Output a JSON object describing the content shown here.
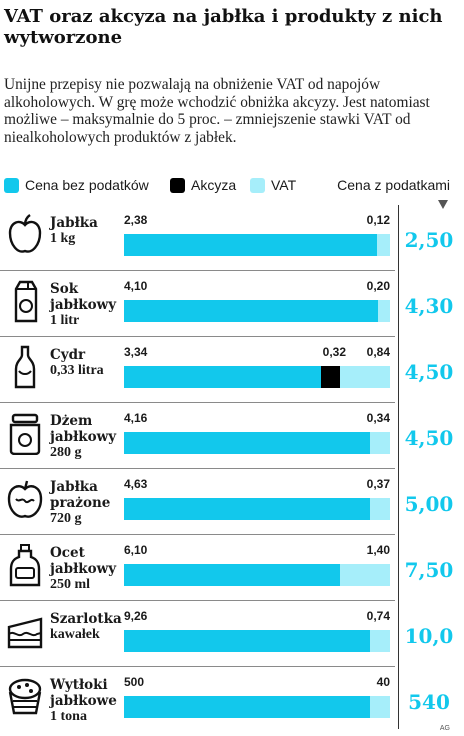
{
  "title": "VAT oraz akcyza na jabłka i produkty z nich wytworzone",
  "intro": "Unijne przepisy nie pozwalają na obniżenie VAT od napojów alkoholowych. W grę może wchodzić obniżka akcyzy. Jest natomiast możliwe – maksymalnie do 5 proc. – zmniejszenie stawki VAT od niealkoholowych produktów z jabłek.",
  "legend": {
    "items": [
      {
        "label": "Cena bez podatków",
        "color": "#12c8ec"
      },
      {
        "label": "Akcyza",
        "color": "#000000"
      },
      {
        "label": "VAT",
        "color": "#a6eefa"
      }
    ],
    "header": "Cena z podatkami"
  },
  "colors": {
    "base": "#12c8ec",
    "excise": "#000000",
    "vat": "#a6eefa",
    "total": "#12c8ec"
  },
  "credit": "AG",
  "chart_data": {
    "type": "bar",
    "orientation": "horizontal",
    "stacked": true,
    "categories": [
      "Jabłka 1 kg",
      "Sok jabłkowy 1 litr",
      "Cydr 0,33 litra",
      "Dżem jabłkowy 280 g",
      "Jabłka prażone 720 g",
      "Ocet jabłkowy 250 ml",
      "Szarlotka kawałek",
      "Wytłoki jabłkowe 1 tona"
    ],
    "series": [
      {
        "name": "Cena bez podatków",
        "values": [
          2.38,
          4.1,
          3.34,
          4.16,
          4.63,
          6.1,
          9.26,
          500
        ]
      },
      {
        "name": "Akcyza",
        "values": [
          0,
          0,
          0.32,
          0,
          0,
          0,
          0,
          0
        ]
      },
      {
        "name": "VAT",
        "values": [
          0.12,
          0.2,
          0.84,
          0.34,
          0.37,
          1.4,
          0.74,
          40
        ]
      }
    ],
    "totals": [
      2.5,
      4.3,
      4.5,
      4.5,
      5.0,
      7.5,
      10.0,
      540
    ],
    "note": "each bar is scaled to its own total"
  },
  "rows": [
    {
      "name": "Jabłka",
      "unit": "1 kg",
      "icon": "apple-icon",
      "base": "2,38",
      "excise": "",
      "vat": "0,12",
      "total": "2,50"
    },
    {
      "name": "Sok jabłkowy",
      "unit": "1 litr",
      "icon": "juice-carton-icon",
      "base": "4,10",
      "excise": "",
      "vat": "0,20",
      "total": "4,30"
    },
    {
      "name": "Cydr",
      "unit": "0,33 litra",
      "icon": "bottle-icon",
      "base": "3,34",
      "excise": "0,32",
      "vat": "0,84",
      "total": "4,50"
    },
    {
      "name": "Dżem jabłkowy",
      "unit": "280 g",
      "icon": "jam-jar-icon",
      "base": "4,16",
      "excise": "",
      "vat": "0,34",
      "total": "4,50"
    },
    {
      "name": "Jabłka prażone",
      "unit": "720 g",
      "icon": "baked-apple-icon",
      "base": "4,63",
      "excise": "",
      "vat": "0,37",
      "total": "5,00"
    },
    {
      "name": "Ocet jabłkowy",
      "unit": "250 ml",
      "icon": "vinegar-bottle-icon",
      "base": "6,10",
      "excise": "",
      "vat": "1,40",
      "total": "7,50"
    },
    {
      "name": "Szarlotka",
      "unit": "kawałek",
      "icon": "cake-icon",
      "base": "9,26",
      "excise": "",
      "vat": "0,74",
      "total": "10,0"
    },
    {
      "name": "Wytłoki jabłkowe",
      "unit": "1 tona",
      "icon": "pomace-basket-icon",
      "base": "500",
      "excise": "",
      "vat": "40",
      "total": "540"
    }
  ]
}
